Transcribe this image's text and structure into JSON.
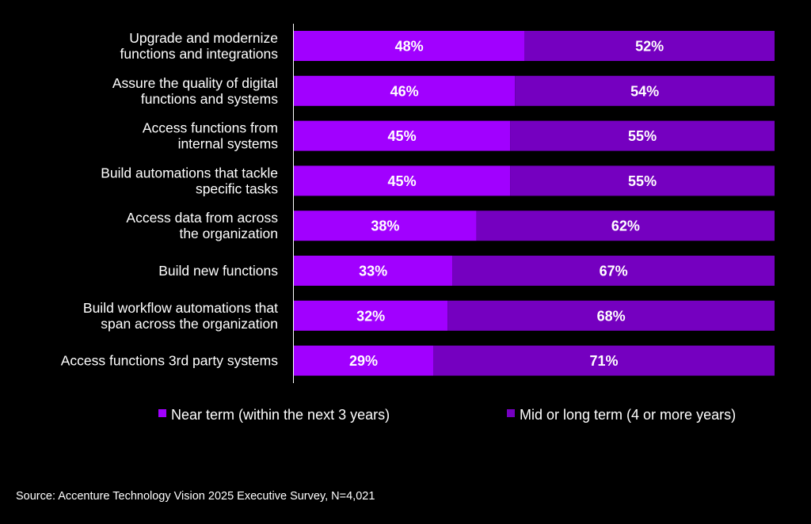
{
  "chart_data": {
    "type": "bar",
    "orientation": "horizontal",
    "stacked": true,
    "categories": [
      [
        "Upgrade and modernize",
        "functions and integrations"
      ],
      [
        "Assure the quality of digital",
        "functions and systems"
      ],
      [
        "Access functions from",
        "internal systems"
      ],
      [
        "Build automations that tackle",
        "specific tasks"
      ],
      [
        "Access data from across",
        "the organization"
      ],
      [
        "Build new functions"
      ],
      [
        "Build workflow automations that",
        "span across the organization"
      ],
      [
        "Access functions 3rd party systems"
      ]
    ],
    "series": [
      {
        "name": "Near term (within the next 3 years)",
        "color": "#A100FF",
        "values": [
          48,
          46,
          45,
          45,
          38,
          33,
          32,
          29
        ],
        "labels": [
          "48%",
          "46%",
          "45%",
          "45%",
          "38%",
          "33%",
          "32%",
          "29%"
        ]
      },
      {
        "name": "Mid or long term (4 or more years)",
        "color": "#7500C0",
        "values": [
          52,
          54,
          55,
          55,
          62,
          67,
          68,
          71
        ],
        "labels": [
          "52%",
          "54%",
          "55%",
          "55%",
          "62%",
          "67%",
          "68%",
          "71%"
        ]
      }
    ],
    "xlim": [
      0,
      100
    ],
    "grid": false,
    "legend_position": "bottom"
  },
  "source": "Source: Accenture Technology Vision 2025 Executive Survey, N=4,021"
}
